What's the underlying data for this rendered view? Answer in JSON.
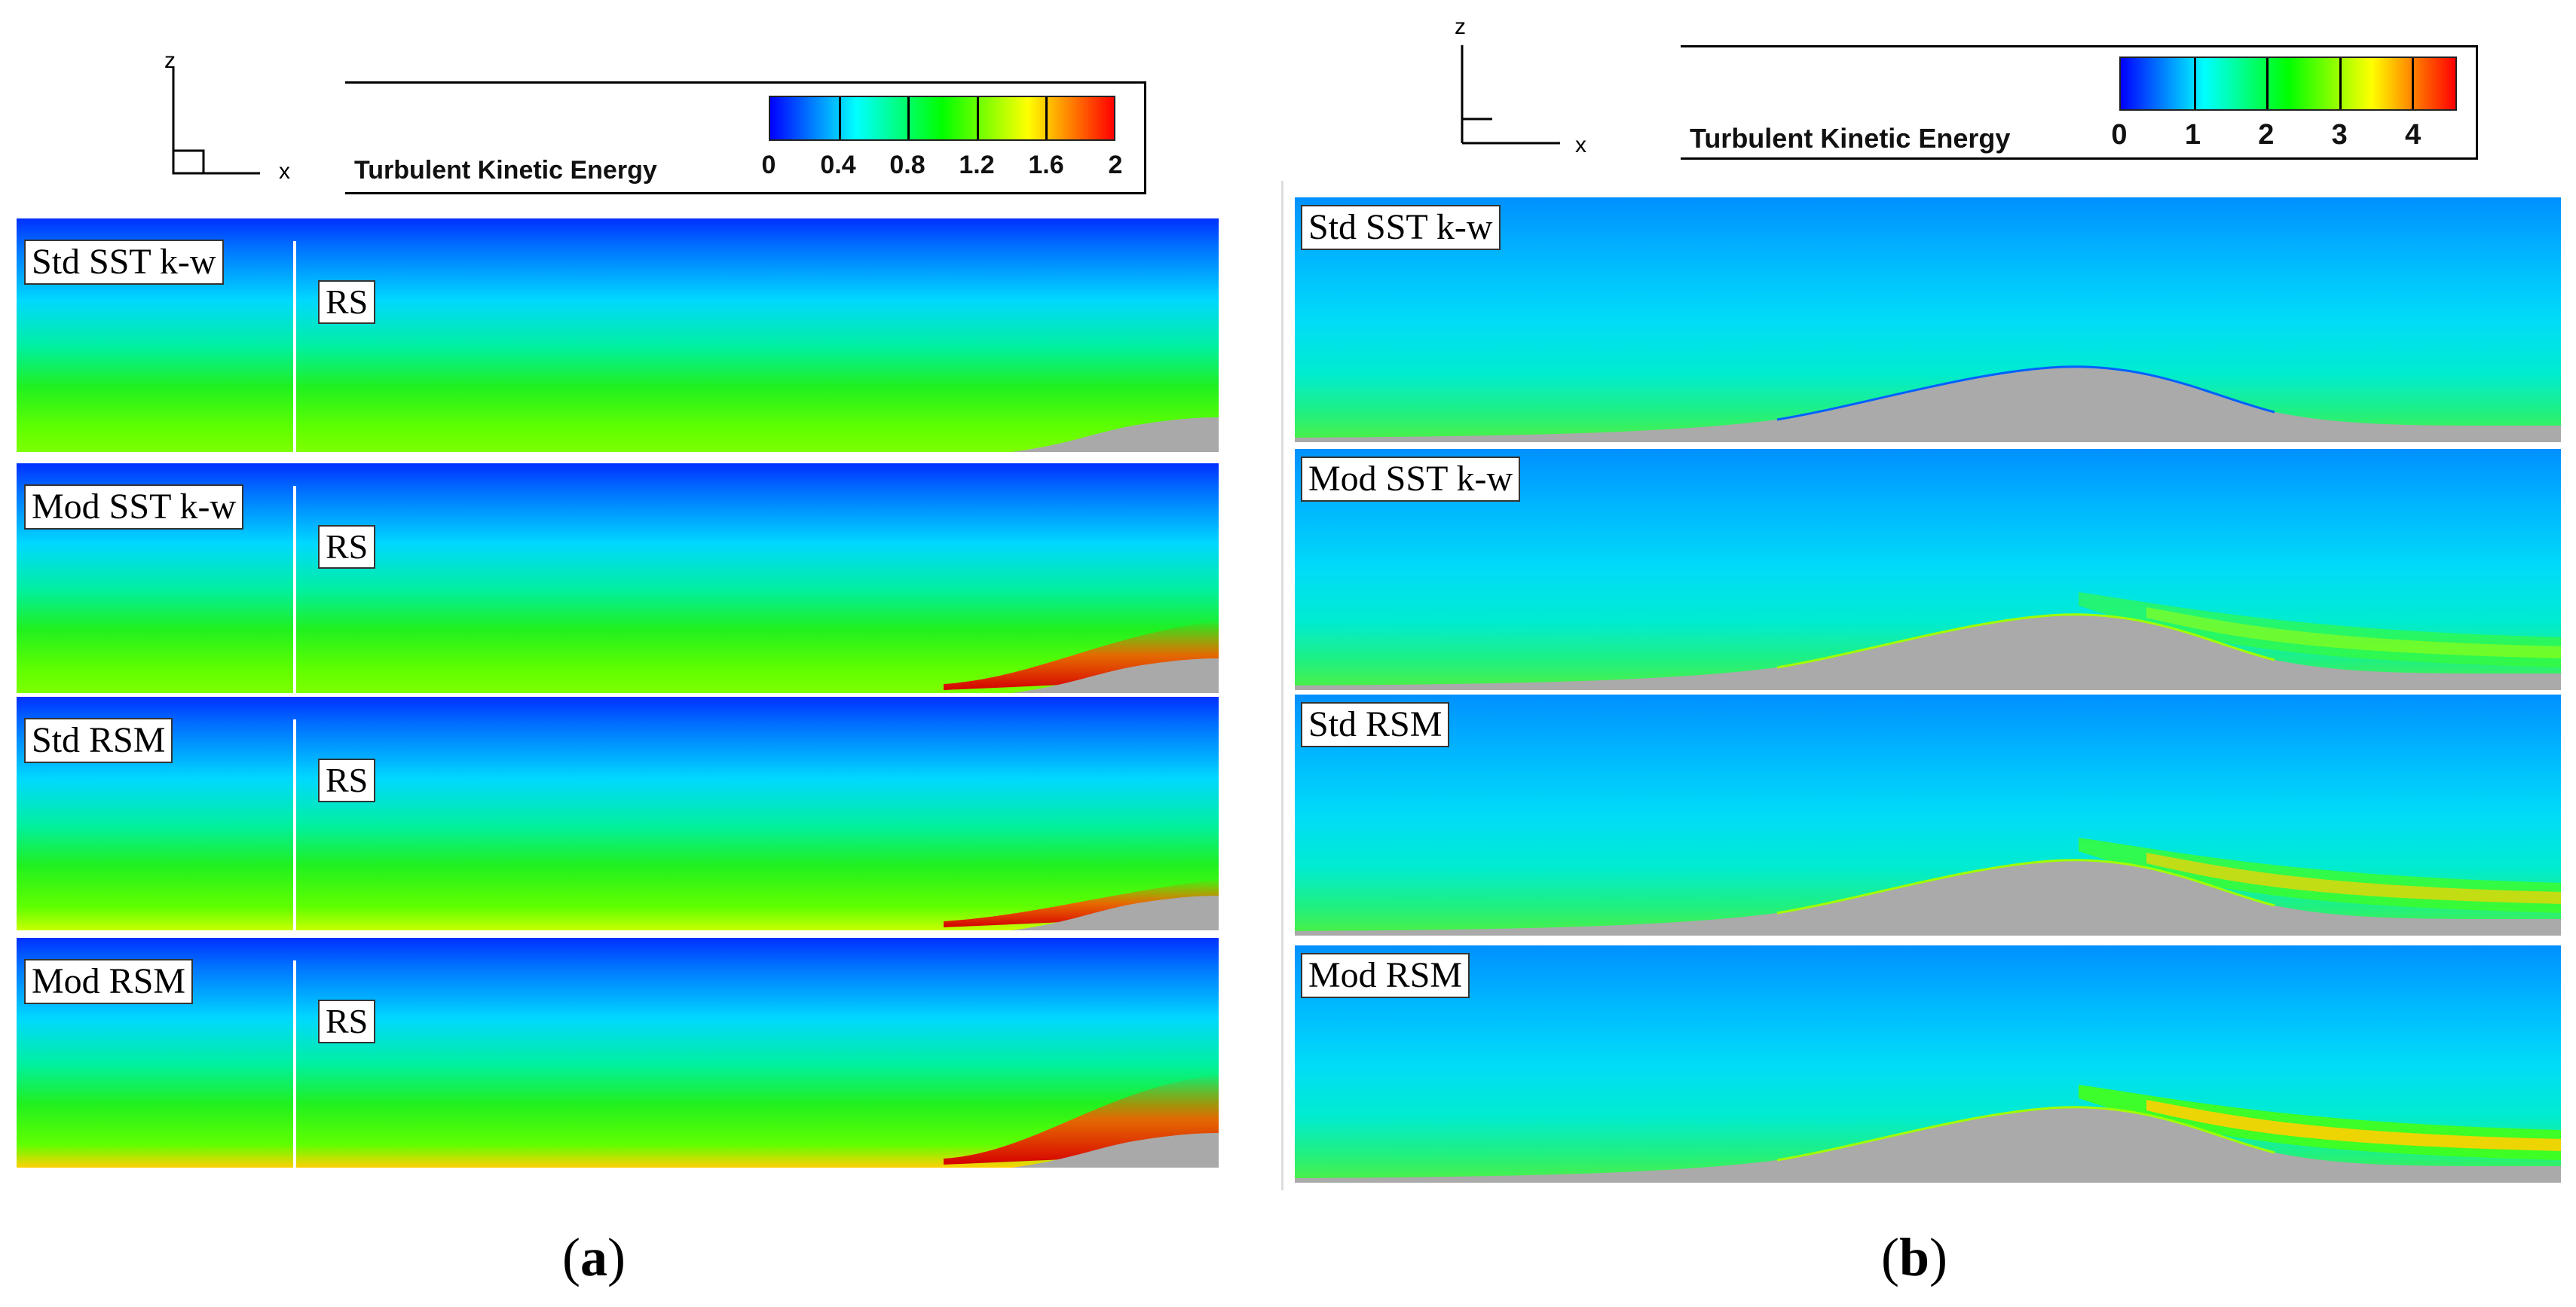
{
  "legend_title": "Turbulent Kinetic Energy",
  "axis_z": "z",
  "axis_x": "x",
  "colormap": [
    "#0000ff",
    "#00ffff",
    "#00ff00",
    "#ffff00",
    "#ff0000"
  ],
  "panel_a": {
    "caption_open": "(",
    "caption_letter": "a",
    "caption_close": ")",
    "colorbar": {
      "min": 0,
      "max": 2,
      "tick_labels": [
        "0",
        "0.4",
        "0.8",
        "1.2",
        "1.6",
        "2"
      ],
      "tick_values": [
        0,
        0.4,
        0.8,
        1.2,
        1.6,
        2
      ]
    },
    "rows": [
      {
        "model": "Std SST k-w",
        "marker": "RS"
      },
      {
        "model": "Mod SST k-w",
        "marker": "RS"
      },
      {
        "model": "Std RSM",
        "marker": "RS"
      },
      {
        "model": "Mod RSM",
        "marker": "RS"
      }
    ]
  },
  "panel_b": {
    "caption_open": "(",
    "caption_letter": "b",
    "caption_close": ")",
    "colorbar": {
      "min": 0,
      "max": 4.6,
      "tick_labels": [
        "0",
        "1",
        "2",
        "3",
        "4"
      ],
      "tick_values": [
        0,
        1,
        2,
        3,
        4
      ]
    },
    "rows": [
      {
        "model": "Std SST k-w"
      },
      {
        "model": "Mod SST k-w"
      },
      {
        "model": "Std RSM"
      },
      {
        "model": "Mod RSM"
      }
    ]
  }
}
